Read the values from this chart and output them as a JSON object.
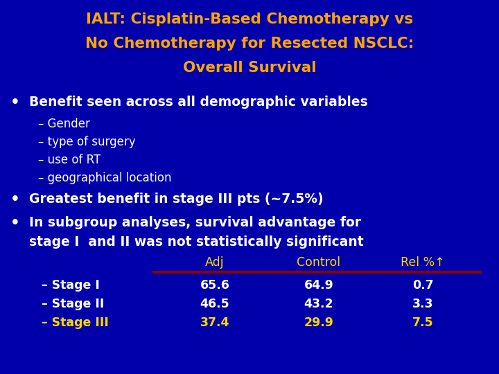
{
  "title_line1": "IALT: Cisplatin-Based Chemotherapy vs",
  "title_line2": "No Chemotherapy for Resected NSCLC:",
  "title_line3": "Overall Survival",
  "title_color": "#FFA500",
  "background_color": "#0000AA",
  "text_color": "#FFFFFF",
  "yellow_color": "#FFD700",
  "bullet1": "Benefit seen across all demographic variables",
  "sub_items": [
    "Gender",
    "type of surgery",
    "use of RT",
    "geographical location"
  ],
  "bullet2": "Greatest benefit in stage III pts (~7.5%)",
  "bullet3_line1": "In subgroup analyses, survival advantage for",
  "bullet3_line2": "stage I  and II was not statistically significant",
  "table_header": [
    "Adj",
    "Control",
    "Rel %↑"
  ],
  "table_rows": [
    [
      "– Stage I",
      "65.6",
      "64.9",
      "0.7"
    ],
    [
      "– Stage II",
      "46.5",
      "43.2",
      "3.3"
    ],
    [
      "– Stage III",
      "37.4",
      "29.9",
      "7.5"
    ]
  ],
  "stage3_color": "#FFD700",
  "header_color": "#FFD700",
  "divider_color": "#8B0000",
  "title_fontsize": 15.5,
  "bullet_fontsize": 13.5,
  "sub_fontsize": 12.0,
  "table_fontsize": 12.5
}
